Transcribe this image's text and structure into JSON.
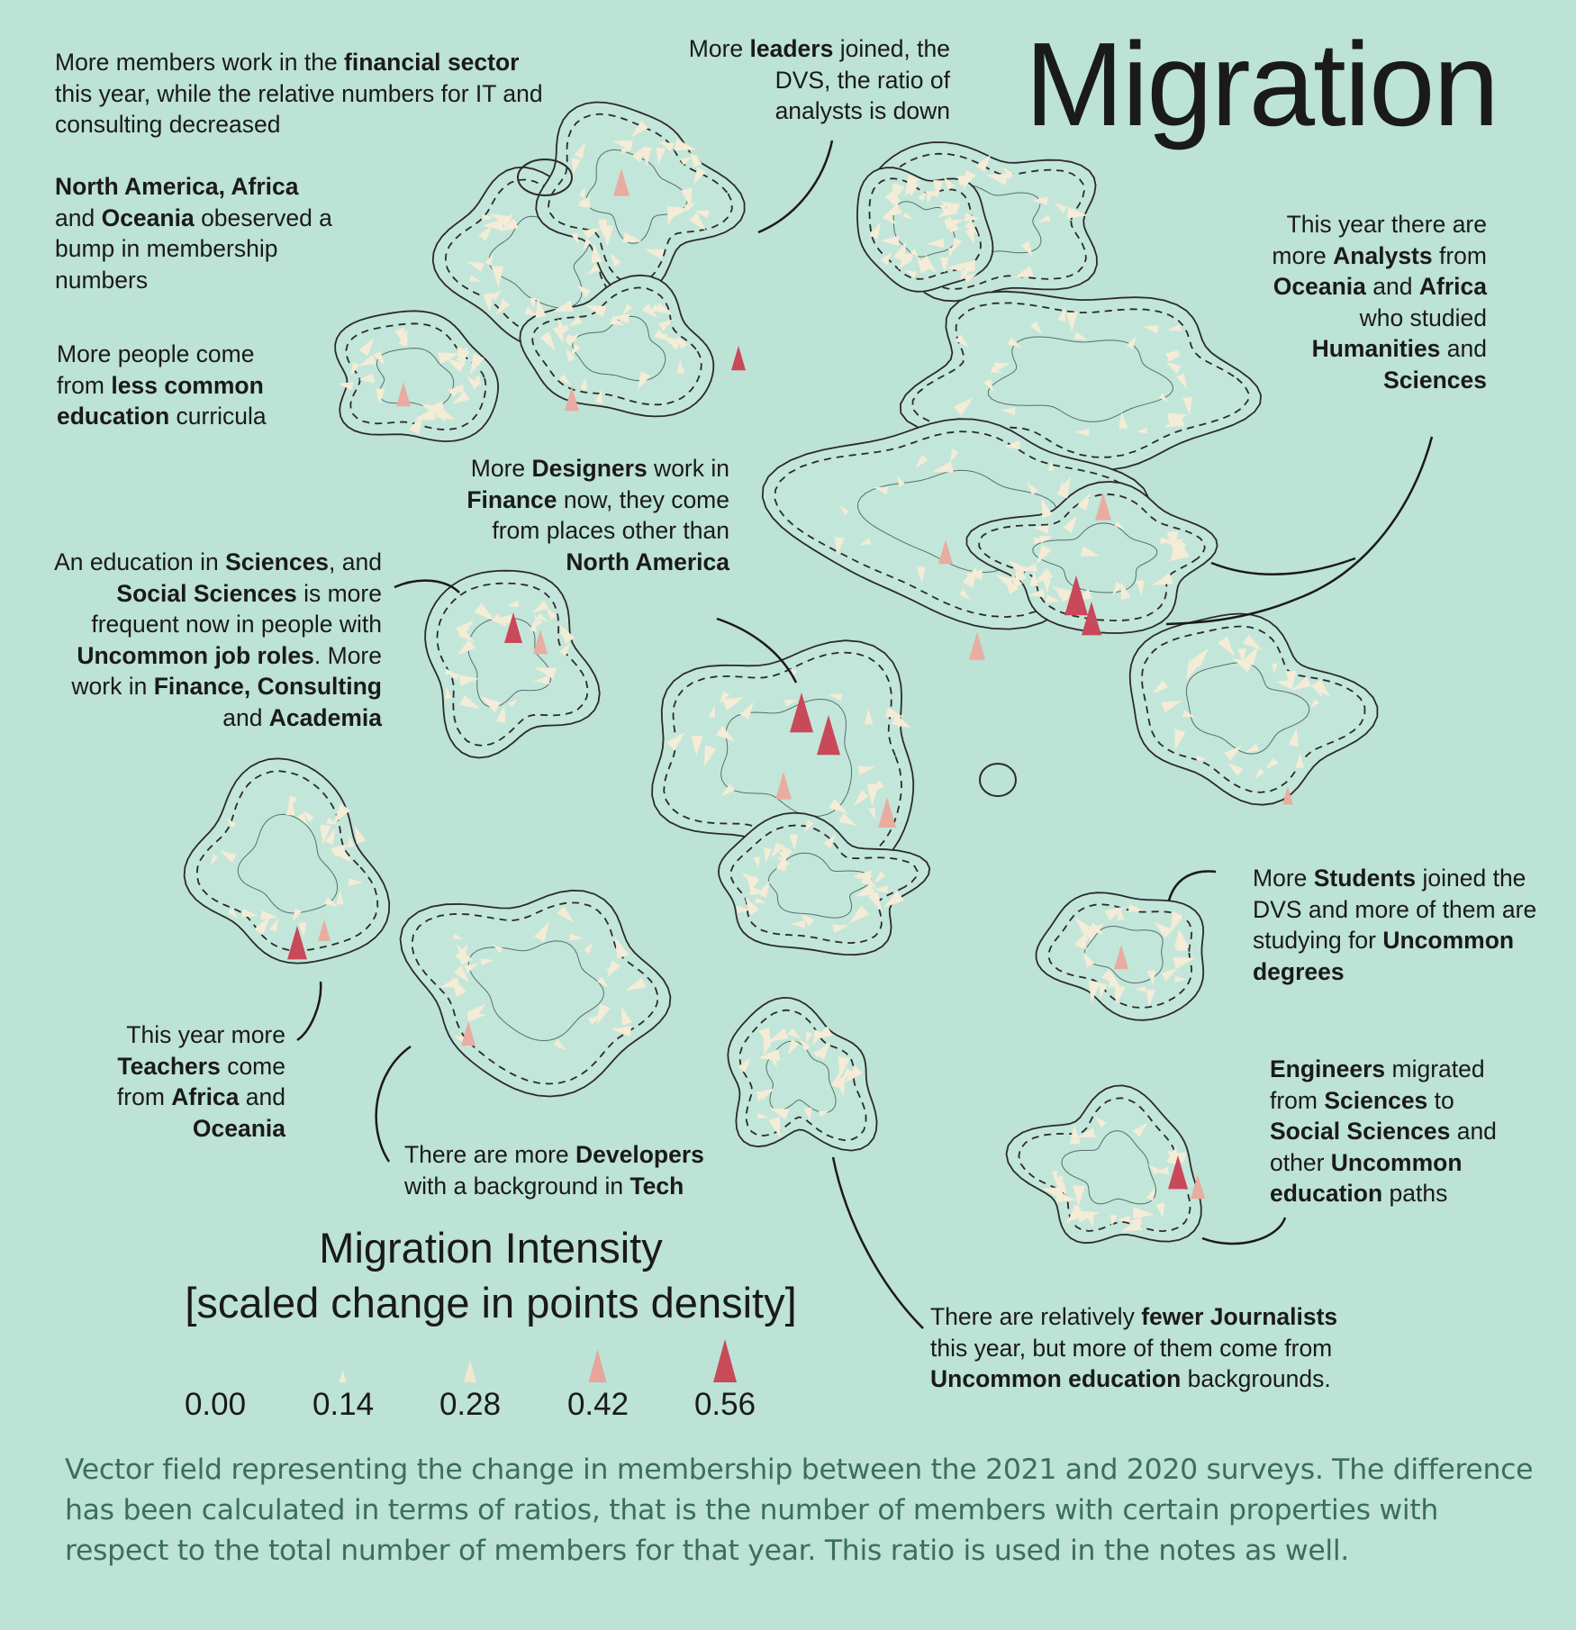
{
  "title": "Migration",
  "notes": {
    "financial": [
      "More members work in the ",
      {
        "b": "financial"
      },
      " ",
      {
        "b": "sector"
      },
      " this year, while the relative numbers for IT and consulting decreased"
    ],
    "regions": [
      {
        "b": "North America, Africa"
      },
      " and ",
      {
        "b": "Oceania"
      },
      " obeserved a bump in membership numbers"
    ],
    "education": [
      "More people come from ",
      {
        "b": "less"
      },
      " ",
      {
        "b": "common education"
      },
      " curricula"
    ],
    "leaders": [
      "More ",
      {
        "b": "leaders"
      },
      " joined, the DVS, the ratio of analysts is down"
    ],
    "analysts": [
      "This year there are more ",
      {
        "b": "Analysts"
      },
      " from ",
      {
        "b": "Oceania"
      },
      " and ",
      {
        "b": "Africa"
      },
      " who studied ",
      {
        "b": "Humanities"
      },
      " and ",
      {
        "b": "Sciences"
      }
    ],
    "designers": [
      "More ",
      {
        "b": "Designers"
      },
      " work in ",
      {
        "b": "Finance"
      },
      " now, they come from places other than ",
      {
        "b": "North America"
      }
    ],
    "sciences": [
      "An education in ",
      {
        "b": "Sciences"
      },
      ", and ",
      {
        "b": "Social Sciences"
      },
      " is more frequent now in people with ",
      {
        "b": "Uncommon job roles"
      },
      ". More work in ",
      {
        "b": "Finance,"
      },
      " ",
      {
        "b": "Consulting"
      },
      " and ",
      {
        "b": "Academia"
      }
    ],
    "students": [
      "More ",
      {
        "b": "Students"
      },
      " joined the DVS and more of them are studying for ",
      {
        "b": "Uncommon degrees"
      }
    ],
    "teachers": [
      "This year more ",
      {
        "b": "Teachers"
      },
      " come from ",
      {
        "b": "Africa"
      },
      " and ",
      {
        "b": "Oceania"
      }
    ],
    "developers": [
      "There are more ",
      {
        "b": "Developers"
      },
      " with a background in ",
      {
        "b": "Tech"
      }
    ],
    "engineers": [
      {
        "b": "Engineers"
      },
      " migrated from ",
      {
        "b": "Sciences"
      },
      " to ",
      {
        "b": "Social Sciences"
      },
      " and other ",
      {
        "b": "Uncommon education"
      },
      " paths"
    ],
    "journalists": [
      "There are relatively ",
      {
        "b": "fewer Journalists"
      },
      " this year, but more of them come from ",
      {
        "b": "Uncommon education"
      },
      " backgrounds."
    ]
  },
  "legend": {
    "title_line1": "Migration Intensity",
    "title_line2": "[scaled change in points density]",
    "values": [
      "0.00",
      "0.14",
      "0.28",
      "0.42",
      "0.56"
    ],
    "colors": [
      "#f2ead2",
      "#f2ead2",
      "#f4e6cc",
      "#e6a69a",
      "#c94a58"
    ]
  },
  "caption": "Vector field representing the change in membership between the 2021 and 2020 surveys. The difference has been calculated in terms of ratios, that is the number of members with certain properties with respect to the total number of members for that year. This ratio is used in the notes as well.",
  "colors": {
    "background": "#bde2d6",
    "outline": "#2b2b2b",
    "caption": "#3c6e5c",
    "arrow_light": "#f4ecd6",
    "arrow_mid": "#e8aca0",
    "arrow_strong": "#c9485a"
  }
}
